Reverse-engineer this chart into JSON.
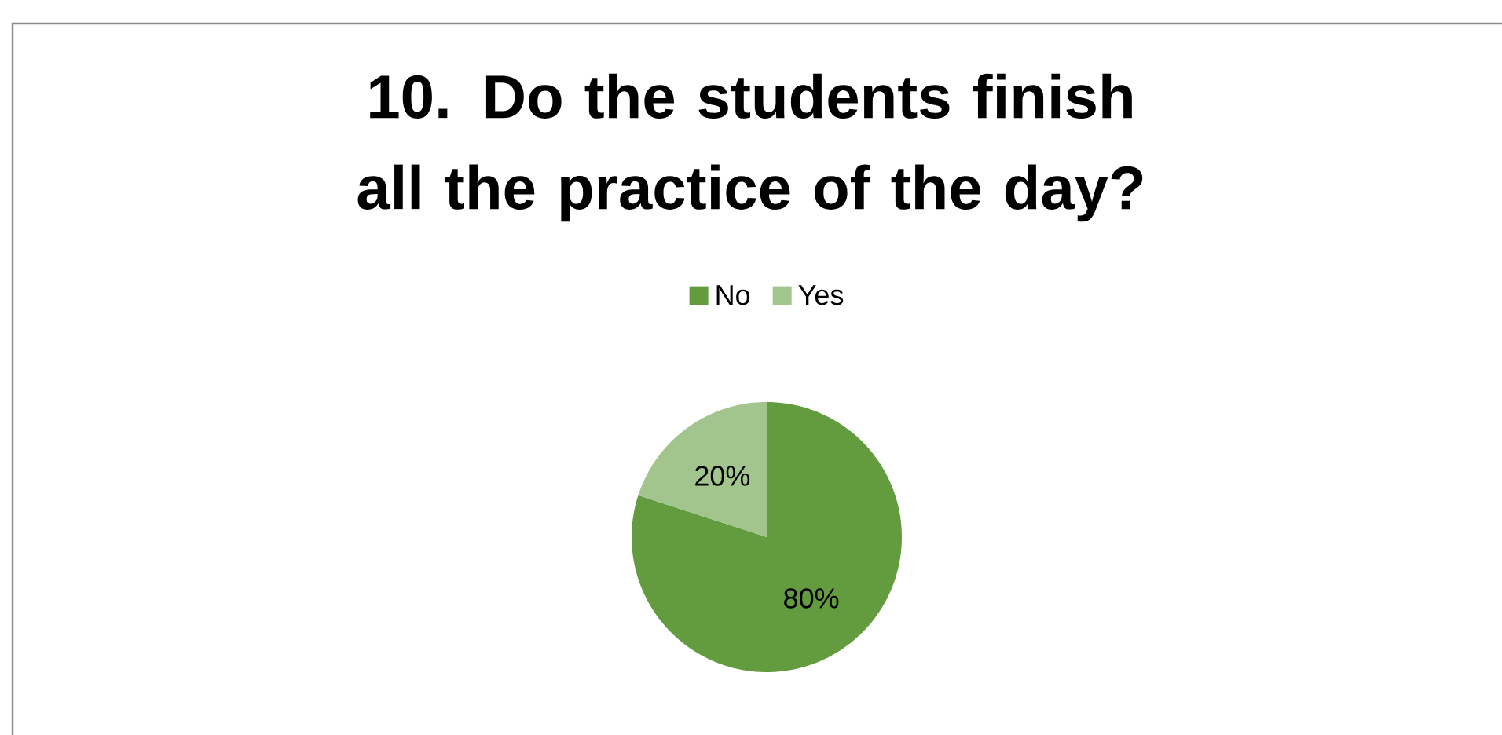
{
  "chart_data": {
    "type": "pie",
    "title": "10. Do the students finish all the practice of the day?",
    "categories": [
      "No",
      "Yes"
    ],
    "values": [
      80,
      20
    ],
    "colors": [
      "#629c3f",
      "#a2c48d"
    ],
    "value_labels": [
      "80%",
      "20%"
    ],
    "legend": "top"
  }
}
